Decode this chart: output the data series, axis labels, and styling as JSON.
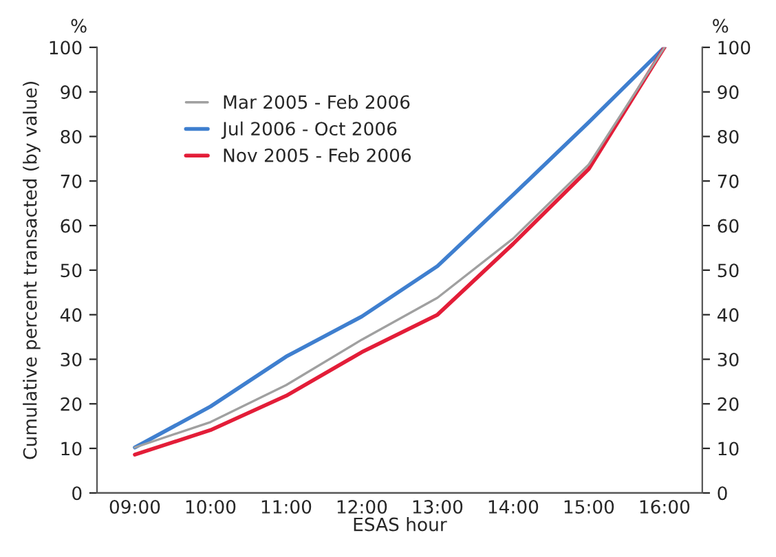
{
  "chart_data": {
    "type": "line",
    "xlabel": "ESAS hour",
    "ylabel": "Cumulative percent transacted (by value)",
    "annotations": [
      "%",
      "%"
    ],
    "categories": [
      "09:00",
      "10:00",
      "11:00",
      "12:00",
      "13:00",
      "14:00",
      "15:00",
      "16:00"
    ],
    "series": [
      {
        "name": "Mar 2005 - Feb 2006",
        "color": "#a0a0a0",
        "values": [
          10.2,
          15.9,
          24.2,
          34.4,
          43.8,
          57.1,
          73.7,
          100
        ]
      },
      {
        "name": "Jul 2006 - Oct 2006",
        "color": "#3f7fcf",
        "values": [
          10.2,
          19.4,
          30.6,
          39.6,
          50.9,
          66.9,
          83.2,
          100
        ]
      },
      {
        "name": "Nov 2005 - Feb 2006",
        "color": "#e31d38",
        "values": [
          8.6,
          14.1,
          21.8,
          31.6,
          40.0,
          55.9,
          72.7,
          100
        ]
      }
    ],
    "ylim": [
      0,
      100
    ],
    "yticks": [
      0,
      10,
      20,
      30,
      40,
      50,
      60,
      70,
      80,
      90,
      100
    ],
    "y2lim": [
      0,
      100
    ],
    "y2ticks": [
      0,
      10,
      20,
      30,
      40,
      50,
      60,
      70,
      80,
      90,
      100
    ],
    "grid": false,
    "legend": "top left",
    "marker": "none",
    "line_style": "solid"
  }
}
